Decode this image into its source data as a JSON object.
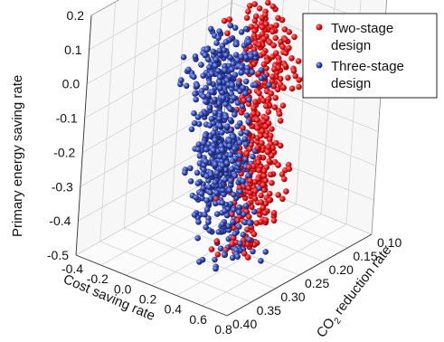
{
  "chart_data": {
    "type": "scatter",
    "projection": "3d",
    "title": "",
    "xlabel": "Cost saving rate",
    "ylabel": "CO2 reduction rate",
    "zlabel": "Primary energy saving rate",
    "xlim": [
      -0.4,
      0.8
    ],
    "ylim": [
      0.1,
      0.4
    ],
    "zlim": [
      -0.5,
      0.2
    ],
    "xticks": [
      "-0.4",
      "-0.2",
      "0.0",
      "0.2",
      "0.4",
      "0.6",
      "0.8"
    ],
    "yticks": [
      "0.10",
      "0.15",
      "0.20",
      "0.25",
      "0.30",
      "0.35",
      "0.40"
    ],
    "zticks": [
      "0.2",
      "0.1",
      "0.0",
      "-0.1",
      "-0.2",
      "-0.3",
      "-0.4",
      "-0.5"
    ],
    "grid": true,
    "legend_position": "top-right",
    "series": [
      {
        "name": "Two-stage design",
        "color": "#e8141a",
        "points_estimate": [
          [
            -0.05,
            0.13,
            -0.03
          ],
          [
            0.0,
            0.14,
            -0.06
          ],
          [
            0.05,
            0.15,
            -0.1
          ],
          [
            0.08,
            0.16,
            -0.13
          ],
          [
            0.12,
            0.17,
            -0.16
          ],
          [
            0.15,
            0.18,
            -0.2
          ],
          [
            0.18,
            0.19,
            -0.24
          ],
          [
            0.2,
            0.18,
            -0.28
          ],
          [
            0.22,
            0.17,
            -0.32
          ],
          [
            0.25,
            0.2,
            -0.36
          ],
          [
            0.28,
            0.22,
            -0.4
          ],
          [
            0.3,
            0.21,
            -0.44
          ],
          [
            0.1,
            0.12,
            -0.08
          ],
          [
            0.02,
            0.11,
            -0.04
          ],
          [
            -0.1,
            0.12,
            0.02
          ],
          [
            0.35,
            0.24,
            -0.3
          ],
          [
            0.4,
            0.26,
            -0.22
          ],
          [
            0.32,
            0.25,
            -0.48
          ]
        ]
      },
      {
        "name": "Three-stage design",
        "color": "#2c3f9e",
        "points_estimate": [
          [
            0.25,
            0.28,
            0.05
          ],
          [
            0.3,
            0.3,
            0.02
          ],
          [
            0.35,
            0.32,
            -0.02
          ],
          [
            0.4,
            0.33,
            -0.06
          ],
          [
            0.45,
            0.35,
            -0.1
          ],
          [
            0.5,
            0.36,
            -0.14
          ],
          [
            0.38,
            0.31,
            0.08
          ],
          [
            0.42,
            0.34,
            0.12
          ],
          [
            0.48,
            0.37,
            0.15
          ],
          [
            0.55,
            0.38,
            -0.18
          ],
          [
            0.33,
            0.29,
            -0.22
          ],
          [
            0.28,
            0.27,
            -0.28
          ],
          [
            0.36,
            0.3,
            -0.34
          ],
          [
            0.3,
            0.26,
            -0.5
          ],
          [
            0.6,
            0.39,
            -0.08
          ]
        ]
      }
    ]
  },
  "legend": {
    "items": [
      {
        "line1": "Two-stage",
        "line2": "design",
        "color": "#e8141a"
      },
      {
        "line1": "Three-stage",
        "line2": "design",
        "color": "#2c3f9e"
      }
    ]
  },
  "axes": {
    "z_label": "Primary energy saving rate",
    "x_label": "Cost saving rate",
    "y_label_prefix": "CO",
    "y_label_sub": "2",
    "y_label_suffix": " reduction rate"
  }
}
